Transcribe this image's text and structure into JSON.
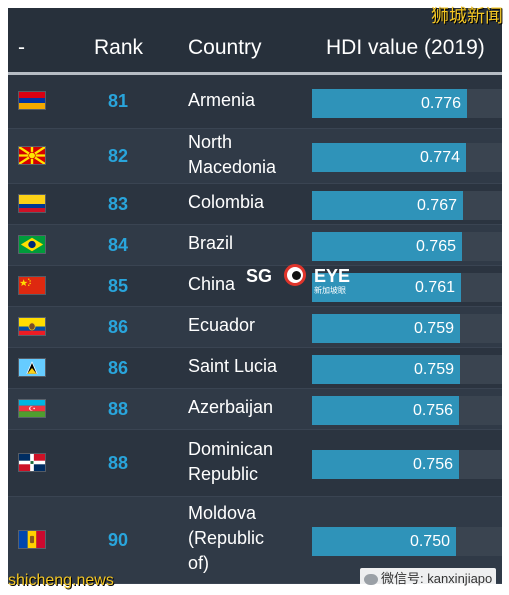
{
  "header": {
    "flag": "-",
    "rank": "Rank",
    "country": "Country",
    "hdi": "HDI value (2019)"
  },
  "watermarks": {
    "top_right": "狮城新闻",
    "bottom_left": "shicheng.news",
    "bottom_right": "微信号: kanxinjiapo",
    "center_logo_left": "SG",
    "center_logo_right": "EYE",
    "center_logo_sub": "新加坡眼"
  },
  "chart_data": {
    "type": "table",
    "columns": [
      "-",
      "Rank",
      "Country",
      "HDI value (2019)"
    ],
    "scale": [
      0,
      1
    ],
    "rows": [
      {
        "flag": "flag-armenia",
        "rank": "81",
        "country": "Armenia",
        "hdi": 0.776,
        "hdi_label": "0.776"
      },
      {
        "flag": "flag-north-macedonia",
        "rank": "82",
        "country": "North Macedonia",
        "hdi": 0.774,
        "hdi_label": "0.774"
      },
      {
        "flag": "flag-colombia",
        "rank": "83",
        "country": "Colombia",
        "hdi": 0.767,
        "hdi_label": "0.767"
      },
      {
        "flag": "flag-brazil",
        "rank": "84",
        "country": "Brazil",
        "hdi": 0.765,
        "hdi_label": "0.765"
      },
      {
        "flag": "flag-china",
        "rank": "85",
        "country": "China",
        "hdi": 0.761,
        "hdi_label": "0.761"
      },
      {
        "flag": "flag-ecuador",
        "rank": "86",
        "country": "Ecuador",
        "hdi": 0.759,
        "hdi_label": "0.759"
      },
      {
        "flag": "flag-saint-lucia",
        "rank": "86",
        "country": "Saint Lucia",
        "hdi": 0.759,
        "hdi_label": "0.759"
      },
      {
        "flag": "flag-azerbaijan",
        "rank": "88",
        "country": "Azerbaijan",
        "hdi": 0.756,
        "hdi_label": "0.756"
      },
      {
        "flag": "flag-dominican-republic",
        "rank": "88",
        "country": "Dominican Republic",
        "hdi": 0.756,
        "hdi_label": "0.756"
      },
      {
        "flag": "flag-moldova",
        "rank": "90",
        "country": "Moldova (Republic of)",
        "hdi": 0.75,
        "hdi_label": "0.750"
      }
    ]
  },
  "colors": {
    "background": "#2b3440",
    "header_background": "#27303b",
    "rank_text": "#29a5dc",
    "bar_fill": "#2f93b9",
    "bar_track": "#3a4450",
    "watermark": "#f3c624"
  }
}
